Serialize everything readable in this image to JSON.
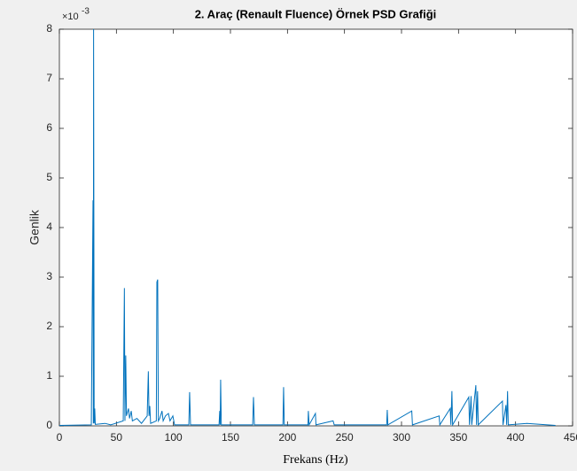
{
  "chart_data": {
    "type": "line",
    "title": "2. Araç (Renault Fluence) Örnek PSD Grafiği",
    "x_label": "Frekans (Hz)",
    "y_label": "Genlik",
    "y_scale_label": {
      "base": "×10",
      "exponent": "-3"
    },
    "xlim": [
      0,
      450
    ],
    "ylim": [
      0,
      8
    ],
    "xticks": [
      0,
      50,
      100,
      150,
      200,
      250,
      300,
      350,
      400,
      450
    ],
    "yticks": [
      0,
      1,
      2,
      3,
      4,
      5,
      6,
      7,
      8
    ],
    "grid": false,
    "series": [
      {
        "color": "#0072bd",
        "x": [
          0,
          28,
          29.5,
          29.8,
          30,
          30.5,
          31,
          31.5,
          40,
          45,
          56,
          57,
          57.5,
          58.2,
          58.8,
          60.6,
          61.5,
          63,
          64,
          68,
          72,
          77,
          78,
          78.6,
          79.3,
          80,
          85,
          85.5,
          86.2,
          86.8,
          88,
          90,
          91,
          93,
          95.6,
          97,
          99.5,
          101,
          113.5,
          114.2,
          115,
          140,
          140.6,
          141,
          141.4,
          142,
          169.5,
          170.2,
          171,
          196,
          196.6,
          197.2,
          218,
          218.3,
          219,
          224.5,
          225,
          240,
          241,
          287,
          287.5,
          288,
          309,
          309.6,
          333,
          333.6,
          342.7,
          343.3,
          344.2,
          344.8,
          359,
          359.6,
          361,
          361.6,
          365.2,
          365.8,
          366.7,
          367.3,
          388.5,
          389,
          391.6,
          392.2,
          393,
          393.6,
          410,
          435
        ],
        "values": [
          0.01,
          0.02,
          4.55,
          0.05,
          8,
          0.05,
          0.35,
          0.03,
          0.05,
          0.02,
          0.1,
          2.78,
          0.1,
          1.42,
          0.2,
          0.35,
          0.15,
          0.3,
          0.1,
          0.15,
          0.05,
          0.2,
          1.1,
          0.2,
          0.4,
          0.05,
          0.1,
          2.9,
          2.95,
          0.1,
          0.15,
          0.3,
          0.1,
          0.2,
          0.25,
          0.1,
          0.2,
          0.02,
          0.02,
          0.68,
          0.02,
          0.02,
          0.3,
          0.02,
          0.93,
          0.02,
          0.02,
          0.58,
          0.02,
          0.02,
          0.78,
          0.02,
          0.02,
          0.3,
          0.02,
          0.25,
          0.02,
          0.1,
          0.02,
          0.02,
          0.32,
          0.02,
          0.3,
          0.02,
          0.2,
          0.02,
          0.35,
          0.02,
          0.7,
          0.02,
          0.58,
          0.02,
          0.6,
          0.02,
          0.82,
          0.02,
          0.7,
          0.02,
          0.5,
          0.02,
          0.42,
          0.02,
          0.7,
          0.02,
          0.05,
          0.01
        ]
      }
    ]
  }
}
